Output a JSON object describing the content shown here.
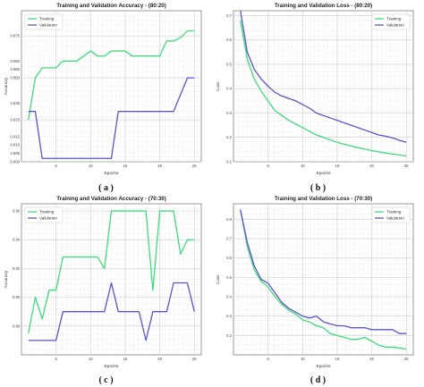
{
  "panels": [
    {
      "caption": "( a )",
      "chart_data": {
        "type": "line",
        "title": "Training and Validation Accuracy - (80:20)",
        "xlabel": "Epochs",
        "ylabel": "Accuracy",
        "xlim": [
          0,
          26
        ],
        "ylim": [
          0.8,
          0.89
        ],
        "xticks": [
          5,
          10,
          15,
          20,
          25
        ],
        "yticks": [
          0.8,
          0.825,
          0.85,
          0.875
        ],
        "ytick_labels": [
          "0.800",
          "0.825",
          "0.850",
          "0.875"
        ],
        "extra_ytick_labels": [
          "0.860",
          "0.855",
          "0.835",
          "0.815",
          "0.810",
          "0.805"
        ],
        "grid": true,
        "legend_position": "top-left",
        "series": [
          {
            "name": "Training",
            "color": "#3ddb7a",
            "x": [
              1,
              2,
              3,
              4,
              5,
              6,
              7,
              8,
              9,
              10,
              11,
              12,
              13,
              14,
              15,
              16,
              17,
              18,
              19,
              20,
              21,
              22,
              23,
              24,
              25
            ],
            "y": [
              0.825,
              0.85,
              0.856,
              0.856,
              0.856,
              0.86,
              0.86,
              0.86,
              0.863,
              0.866,
              0.863,
              0.863,
              0.866,
              0.866,
              0.866,
              0.863,
              0.863,
              0.863,
              0.863,
              0.863,
              0.872,
              0.872,
              0.874,
              0.878,
              0.878
            ]
          },
          {
            "name": "Validation",
            "color": "#5a55c6",
            "x": [
              1,
              2,
              3,
              4,
              5,
              6,
              7,
              8,
              9,
              10,
              11,
              12,
              13,
              14,
              15,
              16,
              17,
              18,
              19,
              20,
              21,
              22,
              23,
              24,
              25
            ],
            "y": [
              0.83,
              0.83,
              0.802,
              0.802,
              0.802,
              0.802,
              0.802,
              0.802,
              0.802,
              0.802,
              0.802,
              0.802,
              0.802,
              0.83,
              0.83,
              0.83,
              0.83,
              0.83,
              0.83,
              0.83,
              0.83,
              0.83,
              0.84,
              0.85,
              0.85
            ]
          }
        ]
      }
    },
    {
      "caption": "( b )",
      "chart_data": {
        "type": "line",
        "title": "Training and Validation Loss - (80:20)",
        "xlabel": "Epochs",
        "ylabel": "Loss",
        "xlim": [
          0,
          26
        ],
        "ylim": [
          0.1,
          0.72
        ],
        "xticks": [
          5,
          10,
          15,
          20,
          25
        ],
        "yticks": [
          0.1,
          0.2,
          0.3,
          0.4,
          0.5,
          0.6,
          0.7
        ],
        "ytick_labels": [
          "0.1",
          "0.2",
          "0.3",
          "0.4",
          "0.5",
          "0.6",
          "0.7"
        ],
        "grid": true,
        "legend_position": "top-right",
        "series": [
          {
            "name": "Training",
            "color": "#3ddb7a",
            "x": [
              1,
              2,
              3,
              4,
              5,
              6,
              7,
              8,
              9,
              10,
              11,
              12,
              13,
              14,
              15,
              16,
              17,
              18,
              19,
              20,
              21,
              22,
              23,
              24,
              25
            ],
            "y": [
              0.68,
              0.52,
              0.44,
              0.39,
              0.35,
              0.31,
              0.29,
              0.27,
              0.255,
              0.24,
              0.225,
              0.21,
              0.2,
              0.19,
              0.18,
              0.172,
              0.165,
              0.158,
              0.152,
              0.146,
              0.141,
              0.136,
              0.132,
              0.128,
              0.124
            ]
          },
          {
            "name": "Validation",
            "color": "#5a55c6",
            "x": [
              1,
              2,
              3,
              4,
              5,
              6,
              7,
              8,
              9,
              10,
              11,
              12,
              13,
              14,
              15,
              16,
              17,
              18,
              19,
              20,
              21,
              22,
              23,
              24,
              25
            ],
            "y": [
              0.72,
              0.55,
              0.48,
              0.44,
              0.41,
              0.385,
              0.37,
              0.36,
              0.35,
              0.335,
              0.32,
              0.3,
              0.29,
              0.28,
              0.27,
              0.26,
              0.25,
              0.24,
              0.23,
              0.22,
              0.21,
              0.205,
              0.198,
              0.188,
              0.18
            ]
          }
        ]
      }
    },
    {
      "caption": "( c )",
      "chart_data": {
        "type": "line",
        "title": "Training and Validation Accuracy - (70:30)",
        "xlabel": "Epochs",
        "ylabel": "Accuracy",
        "xlim": [
          0,
          26
        ],
        "ylim": [
          0.86,
          0.965
        ],
        "xticks": [
          5,
          10,
          15,
          20,
          25
        ],
        "yticks": [
          0.88,
          0.9,
          0.92,
          0.94,
          0.96
        ],
        "ytick_labels": [
          "0.88",
          "0.90",
          "0.92",
          "0.94",
          "0.96"
        ],
        "grid": true,
        "legend_position": "top-left",
        "series": [
          {
            "name": "Training",
            "color": "#3ddb7a",
            "x": [
              1,
              2,
              3,
              4,
              5,
              6,
              7,
              8,
              9,
              10,
              11,
              12,
              13,
              14,
              15,
              16,
              17,
              18,
              19,
              20,
              21,
              22,
              23,
              24,
              25
            ],
            "y": [
              0.875,
              0.9,
              0.885,
              0.905,
              0.905,
              0.928,
              0.928,
              0.928,
              0.928,
              0.928,
              0.928,
              0.92,
              0.96,
              0.96,
              0.96,
              0.96,
              0.96,
              0.96,
              0.905,
              0.96,
              0.96,
              0.96,
              0.93,
              0.94,
              0.94
            ]
          },
          {
            "name": "Validation",
            "color": "#5a55c6",
            "x": [
              1,
              2,
              3,
              4,
              5,
              6,
              7,
              8,
              9,
              10,
              11,
              12,
              13,
              14,
              15,
              16,
              17,
              18,
              19,
              20,
              21,
              22,
              23,
              24,
              25
            ],
            "y": [
              0.87,
              0.87,
              0.87,
              0.87,
              0.87,
              0.89,
              0.89,
              0.89,
              0.89,
              0.89,
              0.89,
              0.89,
              0.91,
              0.89,
              0.89,
              0.89,
              0.89,
              0.87,
              0.89,
              0.89,
              0.89,
              0.91,
              0.91,
              0.91,
              0.89
            ]
          }
        ]
      }
    },
    {
      "caption": "( d )",
      "chart_data": {
        "type": "line",
        "title": "Training and Validation Loss - (70:30)",
        "xlabel": "Epochs",
        "ylabel": "Loss",
        "xlim": [
          0,
          26
        ],
        "ylim": [
          0.1,
          0.88
        ],
        "xticks": [
          5,
          10,
          15,
          20,
          25
        ],
        "yticks": [
          0.2,
          0.3,
          0.4,
          0.5,
          0.6,
          0.7,
          0.8
        ],
        "ytick_labels": [
          "0.2",
          "0.3",
          "0.4",
          "0.5",
          "0.6",
          "0.7",
          "0.8"
        ],
        "grid": true,
        "legend_position": "top-right",
        "series": [
          {
            "name": "Training",
            "color": "#3ddb7a",
            "x": [
              1,
              2,
              3,
              4,
              5,
              6,
              7,
              8,
              9,
              10,
              11,
              12,
              13,
              14,
              15,
              16,
              17,
              18,
              19,
              20,
              21,
              22,
              23,
              24,
              25
            ],
            "y": [
              0.85,
              0.66,
              0.54,
              0.48,
              0.45,
              0.4,
              0.36,
              0.33,
              0.31,
              0.28,
              0.27,
              0.25,
              0.24,
              0.21,
              0.2,
              0.19,
              0.18,
              0.18,
              0.19,
              0.17,
              0.15,
              0.14,
              0.14,
              0.135,
              0.13
            ]
          },
          {
            "name": "Validation",
            "color": "#5a55c6",
            "x": [
              1,
              2,
              3,
              4,
              5,
              6,
              7,
              8,
              9,
              10,
              11,
              12,
              13,
              14,
              15,
              16,
              17,
              18,
              19,
              20,
              21,
              22,
              23,
              24,
              25
            ],
            "y": [
              0.85,
              0.68,
              0.56,
              0.49,
              0.47,
              0.42,
              0.37,
              0.34,
              0.32,
              0.3,
              0.29,
              0.3,
              0.27,
              0.26,
              0.25,
              0.25,
              0.24,
              0.24,
              0.24,
              0.23,
              0.23,
              0.23,
              0.23,
              0.21,
              0.21
            ]
          }
        ]
      }
    }
  ]
}
